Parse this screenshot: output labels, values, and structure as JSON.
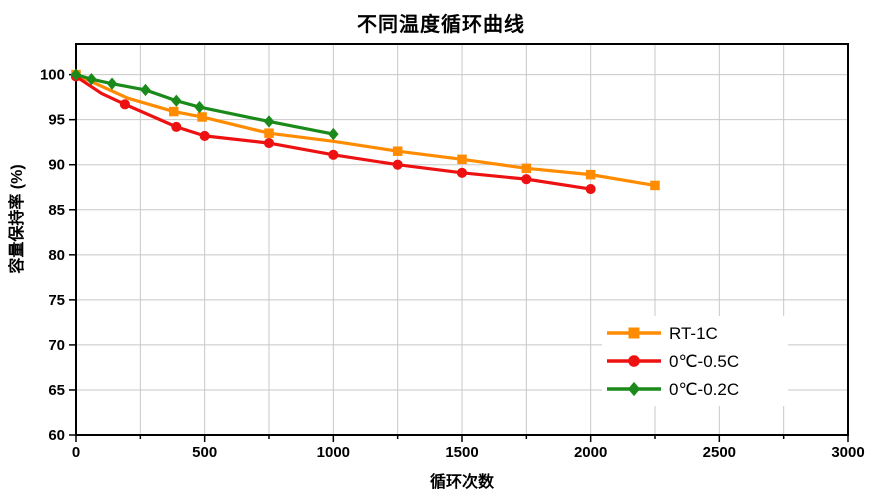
{
  "title": "不同温度循环曲线",
  "chart_data": {
    "type": "line",
    "title": "不同温度循环曲线",
    "xlabel": "循环次数",
    "ylabel": "容量保持率 (%)",
    "xlim": [
      0,
      3000
    ],
    "ylim": [
      60,
      103.4
    ],
    "x_major_ticks": [
      0,
      500,
      1000,
      1500,
      2000,
      2500,
      3000
    ],
    "x_minor_step": 250,
    "y_ticks": [
      60,
      65,
      70,
      75,
      80,
      85,
      90,
      95,
      100
    ],
    "grid": true,
    "grid_color": "#c8c8c8",
    "frame_color": "#000000",
    "legend_position": "inside-lower-right",
    "series": [
      {
        "name": "RT-1C",
        "color": "#ff8c00",
        "marker": "square",
        "points": [
          {
            "x": 0,
            "y": 100
          },
          {
            "x": 200,
            "y": 97.4,
            "marker": false
          },
          {
            "x": 380,
            "y": 95.9
          },
          {
            "x": 490,
            "y": 95.3
          },
          {
            "x": 750,
            "y": 93.5
          },
          {
            "x": 1000,
            "y": 92.6,
            "marker": false
          },
          {
            "x": 1250,
            "y": 91.5
          },
          {
            "x": 1500,
            "y": 90.6
          },
          {
            "x": 1750,
            "y": 89.6
          },
          {
            "x": 2000,
            "y": 88.9
          },
          {
            "x": 2250,
            "y": 87.7
          }
        ]
      },
      {
        "name": "0℃-0.5C",
        "color": "#ee1111",
        "marker": "circle",
        "points": [
          {
            "x": 0,
            "y": 99.8
          },
          {
            "x": 100,
            "y": 97.9,
            "marker": false
          },
          {
            "x": 190,
            "y": 96.7
          },
          {
            "x": 390,
            "y": 94.2
          },
          {
            "x": 500,
            "y": 93.2
          },
          {
            "x": 750,
            "y": 92.4
          },
          {
            "x": 1000,
            "y": 91.1
          },
          {
            "x": 1250,
            "y": 90.0
          },
          {
            "x": 1500,
            "y": 89.1
          },
          {
            "x": 1750,
            "y": 88.4
          },
          {
            "x": 2000,
            "y": 87.3
          }
        ]
      },
      {
        "name": "0℃-0.2C",
        "color": "#1a8a1a",
        "marker": "diamond",
        "points": [
          {
            "x": 0,
            "y": 100
          },
          {
            "x": 60,
            "y": 99.5
          },
          {
            "x": 140,
            "y": 99.0
          },
          {
            "x": 270,
            "y": 98.3
          },
          {
            "x": 390,
            "y": 97.1
          },
          {
            "x": 480,
            "y": 96.4
          },
          {
            "x": 750,
            "y": 94.8
          },
          {
            "x": 1000,
            "y": 93.4
          }
        ]
      }
    ]
  }
}
